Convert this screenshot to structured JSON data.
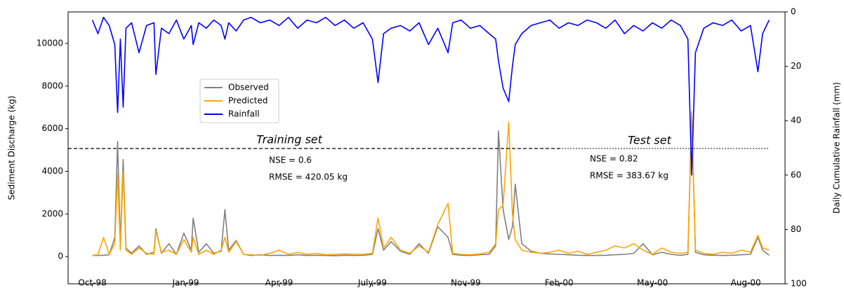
{
  "chart_data": {
    "type": "line",
    "ylabel": "Sediment Discharge (kg)",
    "y2label": "Daily Cumulative Rainfall (mm)",
    "x": [
      0,
      6,
      12,
      18,
      24,
      27,
      30,
      33,
      36,
      42,
      50,
      58,
      66,
      68,
      74,
      82,
      90,
      98,
      106,
      108,
      114,
      122,
      130,
      138,
      142,
      146,
      154,
      162,
      170,
      180,
      190,
      200,
      210,
      220,
      230,
      240,
      250,
      260,
      270,
      280,
      290,
      300,
      306,
      312,
      320,
      330,
      340,
      350,
      360,
      370,
      381,
      386,
      395,
      405,
      415,
      425,
      432,
      435,
      440,
      446,
      450,
      453,
      460,
      470,
      480,
      490,
      500,
      510,
      520,
      530,
      540,
      550,
      560,
      570,
      580,
      590,
      600,
      610,
      620,
      630,
      638,
      642,
      646,
      655,
      665,
      675,
      685,
      695,
      705,
      713,
      718,
      725
    ],
    "series": [
      {
        "name": "Observed",
        "color": "#808080",
        "values": [
          50,
          50,
          60,
          80,
          900,
          5400,
          600,
          4550,
          400,
          150,
          500,
          100,
          200,
          1300,
          150,
          600,
          100,
          1100,
          300,
          1800,
          200,
          600,
          150,
          250,
          2200,
          300,
          750,
          100,
          50,
          80,
          50,
          60,
          50,
          80,
          50,
          60,
          50,
          40,
          60,
          50,
          60,
          100,
          1300,
          300,
          700,
          250,
          100,
          600,
          150,
          1400,
          900,
          100,
          60,
          50,
          80,
          100,
          500,
          5900,
          2200,
          800,
          1400,
          3400,
          600,
          250,
          150,
          120,
          100,
          80,
          60,
          50,
          50,
          60,
          80,
          100,
          150,
          600,
          80,
          200,
          100,
          60,
          100,
          6700,
          200,
          80,
          60,
          50,
          60,
          80,
          100,
          900,
          300,
          60
        ]
      },
      {
        "name": "Predicted",
        "color": "#ffa500",
        "values": [
          60,
          80,
          900,
          100,
          600,
          3900,
          300,
          4000,
          300,
          100,
          400,
          150,
          100,
          1200,
          200,
          300,
          100,
          800,
          200,
          900,
          100,
          300,
          100,
          300,
          900,
          200,
          700,
          100,
          80,
          60,
          150,
          300,
          100,
          200,
          100,
          150,
          80,
          100,
          120,
          100,
          100,
          150,
          1800,
          400,
          900,
          300,
          150,
          500,
          200,
          1500,
          2500,
          150,
          100,
          80,
          120,
          200,
          600,
          2200,
          2400,
          6300,
          2000,
          800,
          300,
          200,
          150,
          200,
          300,
          150,
          250,
          100,
          200,
          300,
          500,
          400,
          600,
          300,
          100,
          400,
          200,
          150,
          200,
          6800,
          300,
          150,
          100,
          200,
          150,
          300,
          200,
          1000,
          400,
          300
        ]
      },
      {
        "name": "Rainfall",
        "color": "#0000ff",
        "axis": "y2",
        "values": [
          3,
          8,
          2,
          5,
          12,
          37,
          10,
          35,
          6,
          4,
          15,
          5,
          4,
          23,
          6,
          8,
          3,
          10,
          5,
          12,
          4,
          6,
          3,
          5,
          10,
          4,
          7,
          3,
          2,
          4,
          3,
          5,
          2,
          6,
          3,
          4,
          2,
          5,
          3,
          6,
          4,
          10,
          26,
          8,
          6,
          5,
          7,
          4,
          12,
          6,
          15,
          4,
          3,
          6,
          5,
          8,
          10,
          18,
          28,
          33,
          20,
          12,
          8,
          5,
          4,
          3,
          6,
          4,
          5,
          3,
          4,
          6,
          3,
          8,
          5,
          7,
          4,
          6,
          3,
          5,
          10,
          60,
          15,
          6,
          4,
          5,
          3,
          7,
          5,
          22,
          8,
          3
        ]
      }
    ],
    "xlim": [
      -26,
      742
    ],
    "xticks": [
      {
        "value": 0,
        "label": "Oct-98"
      },
      {
        "value": 100,
        "label": "Jan-99"
      },
      {
        "value": 200,
        "label": "Apr-99"
      },
      {
        "value": 300,
        "label": "July-99"
      },
      {
        "value": 400,
        "label": "Nov-99"
      },
      {
        "value": 500,
        "label": "Feb-00"
      },
      {
        "value": 600,
        "label": "May-00"
      },
      {
        "value": 700,
        "label": "Aug-00"
      }
    ],
    "ylim": [
      -1280,
      11480
    ],
    "yticks": [
      0,
      2000,
      4000,
      6000,
      8000,
      10000
    ],
    "y2lim": [
      0,
      100
    ],
    "y2ticks": [
      0,
      20,
      40,
      60,
      80,
      100
    ],
    "y2_inverted": true,
    "reference_line": {
      "value": 5070,
      "split_x": 503
    },
    "annotations": [
      "Training set",
      "Test set",
      "NSE = 0.6",
      "RMSE = 420.05 kg",
      "NSE = 0.82",
      "RMSE = 383.67 kg"
    ],
    "legend": "upper left"
  }
}
